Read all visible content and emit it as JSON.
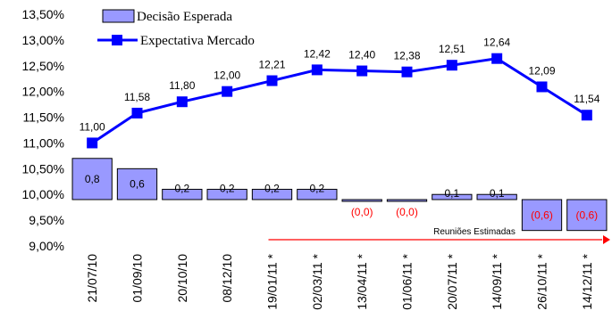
{
  "chart_data": {
    "type": "bar+line",
    "categories": [
      "21/07/10",
      "01/09/10",
      "20/10/10",
      "08/12/10",
      "19/01/11 *",
      "02/03/11 *",
      "13/04/11 *",
      "01/06/11 *",
      "20/07/11 *",
      "14/09/11 *",
      "26/10/11 *",
      "14/12/11 *"
    ],
    "series": [
      {
        "name": "Decisão Esperada",
        "type": "bar",
        "values": [
          0.8,
          0.6,
          0.2,
          0.2,
          0.2,
          0.2,
          0.0,
          0.0,
          0.1,
          0.1,
          -0.6,
          -0.6
        ],
        "labels": [
          "0,8",
          "0,6",
          "0,2",
          "0,2",
          "0,2",
          "0,2",
          "(0,0)",
          "(0,0)",
          "0,1",
          "0,1",
          "(0,6)",
          "(0,6)"
        ],
        "color": "#9999ff",
        "negative_label_color": "#ff0000"
      },
      {
        "name": "Expectativa Mercado",
        "type": "line",
        "values": [
          11.0,
          11.58,
          11.8,
          12.0,
          12.21,
          12.42,
          12.4,
          12.38,
          12.51,
          12.64,
          12.09,
          11.54
        ],
        "labels": [
          "11,00",
          "11,58",
          "11,80",
          "12,00",
          "12,21",
          "12,42",
          "12,40",
          "12,38",
          "12,51",
          "12,64",
          "12,09",
          "11,54"
        ],
        "color": "#0000ff"
      }
    ],
    "y_ticks": [
      "13,50%",
      "13,00%",
      "12,50%",
      "12,00%",
      "11,50%",
      "11,00%",
      "10,50%",
      "10,00%",
      "9,50%",
      "9,00%"
    ],
    "ylim": [
      9.0,
      13.5
    ],
    "ystep": 0.5,
    "bar_baseline": 9.9,
    "bar_scale": 1.0,
    "legend_position": "top-left",
    "annotation": {
      "text": "Reuniões Estimadas",
      "color": "#ff0000",
      "from_category": 4,
      "to": "right-edge"
    }
  }
}
